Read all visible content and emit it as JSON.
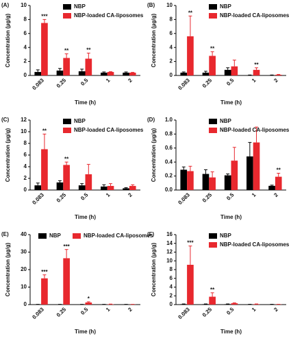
{
  "chart_data": [
    {
      "type": "bar",
      "title": "(A)",
      "xlabel": "Time (h)",
      "ylabel": "Concentration (µg/g)",
      "legend": "upper right",
      "categories": [
        "0.083",
        "0.25",
        "0.5",
        "1",
        "2"
      ],
      "series": [
        {
          "name": "NBP",
          "color": "#000000",
          "values": [
            0.5,
            0.7,
            0.6,
            0.4,
            0.4
          ],
          "errors": [
            0.3,
            0.3,
            0.3,
            0.1,
            0.1
          ]
        },
        {
          "name": "NBP-loaded CA-liposomes",
          "color": "#e8282e",
          "values": [
            7.5,
            2.5,
            2.4,
            0.5,
            0.4
          ],
          "errors": [
            0.5,
            0.6,
            0.8,
            0.05,
            0.05
          ]
        }
      ],
      "annotations": [
        "***",
        "**",
        "**",
        null,
        null
      ],
      "ylim": [
        0,
        10
      ],
      "yticks": [
        0,
        2,
        4,
        6,
        8,
        10
      ]
    },
    {
      "type": "bar",
      "title": "(B)",
      "xlabel": "Time (h)",
      "ylabel": "Concentration (µg/g)",
      "legend": "upper right",
      "categories": [
        "0.083",
        "0.25",
        "0.5",
        "1",
        "2"
      ],
      "series": [
        {
          "name": "NBP",
          "color": "#000000",
          "values": [
            0.4,
            0.4,
            0.8,
            0.05,
            0.05
          ],
          "errors": [
            0.1,
            0.2,
            0.3,
            0.02,
            0.02
          ]
        },
        {
          "name": "NBP-loaded CA-liposomes",
          "color": "#e8282e",
          "values": [
            5.6,
            2.8,
            1.3,
            0.8,
            0.1
          ],
          "errors": [
            2.9,
            0.6,
            0.9,
            0.3,
            0.05
          ]
        }
      ],
      "annotations": [
        "**",
        "**",
        null,
        "**",
        null
      ],
      "ylim": [
        0,
        10
      ],
      "yticks": [
        0,
        2,
        4,
        6,
        8,
        10
      ]
    },
    {
      "type": "bar",
      "title": "(C)",
      "xlabel": "Time (h)",
      "ylabel": "Concentration (µg/g)",
      "legend": "upper right",
      "categories": [
        "0.083",
        "0.25",
        "0.5",
        "1",
        "2"
      ],
      "series": [
        {
          "name": "NBP",
          "color": "#000000",
          "values": [
            0.8,
            1.3,
            0.8,
            0.6,
            0.3
          ],
          "errors": [
            0.4,
            0.3,
            0.3,
            0.3,
            0.1
          ]
        },
        {
          "name": "NBP-loaded CA-liposomes",
          "color": "#e8282e",
          "values": [
            7.0,
            4.3,
            2.7,
            0.7,
            0.7
          ],
          "errors": [
            2.6,
            0.5,
            1.7,
            0.4,
            0.2
          ]
        }
      ],
      "annotations": [
        "**",
        "**",
        null,
        null,
        null
      ],
      "ylim": [
        0,
        12
      ],
      "yticks": [
        0,
        2,
        4,
        6,
        8,
        10,
        12
      ]
    },
    {
      "type": "bar",
      "title": "(D)",
      "xlabel": "Time (h)",
      "ylabel": "Concentration (µg/g)",
      "legend": "upper right",
      "categories": [
        "0.083",
        "0.25",
        "0.5",
        "1",
        "2"
      ],
      "series": [
        {
          "name": "NBP",
          "color": "#000000",
          "values": [
            0.29,
            0.23,
            0.21,
            0.48,
            0.06
          ],
          "errors": [
            0.04,
            0.06,
            0.02,
            0.2,
            0.01
          ]
        },
        {
          "name": "NBP-loaded CA-liposomes",
          "color": "#e8282e",
          "values": [
            0.27,
            0.18,
            0.42,
            0.68,
            0.19
          ],
          "errors": [
            0.07,
            0.08,
            0.19,
            0.22,
            0.05
          ]
        }
      ],
      "annotations": [
        null,
        null,
        null,
        null,
        "**"
      ],
      "ylim": [
        0,
        1
      ],
      "yticks": [
        {
          "value": 0,
          "label": "0.0"
        },
        0.2,
        0.4,
        0.6,
        0.8,
        {
          "value": 1,
          "label": "1.0"
        }
      ]
    },
    {
      "type": "bar",
      "title": "(E)",
      "xlabel": "Time (h)",
      "ylabel": "Concentration (µg/g)",
      "legend": "top horizontal",
      "categories": [
        "0.083",
        "0.25",
        "0.5",
        "1",
        "2"
      ],
      "series": [
        {
          "name": "NBP",
          "color": "#000000",
          "values": [
            0.1,
            0.1,
            0.1,
            0.1,
            0.1
          ],
          "errors": [
            0.05,
            0.05,
            0.05,
            0.05,
            0.05
          ]
        },
        {
          "name": "NBP-loaded CA-liposomes",
          "color": "#e8282e",
          "values": [
            15,
            26.5,
            1.2,
            0.2,
            0.1
          ],
          "errors": [
            2,
            5,
            0.4,
            0.1,
            0.05
          ]
        }
      ],
      "annotations": [
        "***",
        "***",
        "*",
        null,
        null
      ],
      "ylim": [
        0,
        40
      ],
      "yticks": [
        0,
        10,
        20,
        30,
        40
      ]
    },
    {
      "type": "bar",
      "title": "(F)",
      "xlabel": "Time (h)",
      "ylabel": "Concentration (µg/g)",
      "legend": "upper right",
      "categories": [
        "0.083",
        "0.25",
        "0.5",
        "1",
        "2"
      ],
      "series": [
        {
          "name": "NBP",
          "color": "#000000",
          "values": [
            0.1,
            0.1,
            0.1,
            0.05,
            0.05
          ],
          "errors": [
            0.05,
            0.05,
            0.05,
            0.02,
            0.02
          ]
        },
        {
          "name": "NBP-loaded CA-liposomes",
          "color": "#e8282e",
          "values": [
            9.1,
            1.8,
            0.3,
            0.1,
            0.05
          ],
          "errors": [
            4.3,
            0.9,
            0.1,
            0.05,
            0.02
          ]
        }
      ],
      "annotations": [
        "***",
        "**",
        null,
        null,
        null
      ],
      "ylim": [
        0,
        16
      ],
      "yticks": [
        0,
        2,
        4,
        6,
        8,
        10,
        12,
        14,
        16
      ]
    }
  ]
}
